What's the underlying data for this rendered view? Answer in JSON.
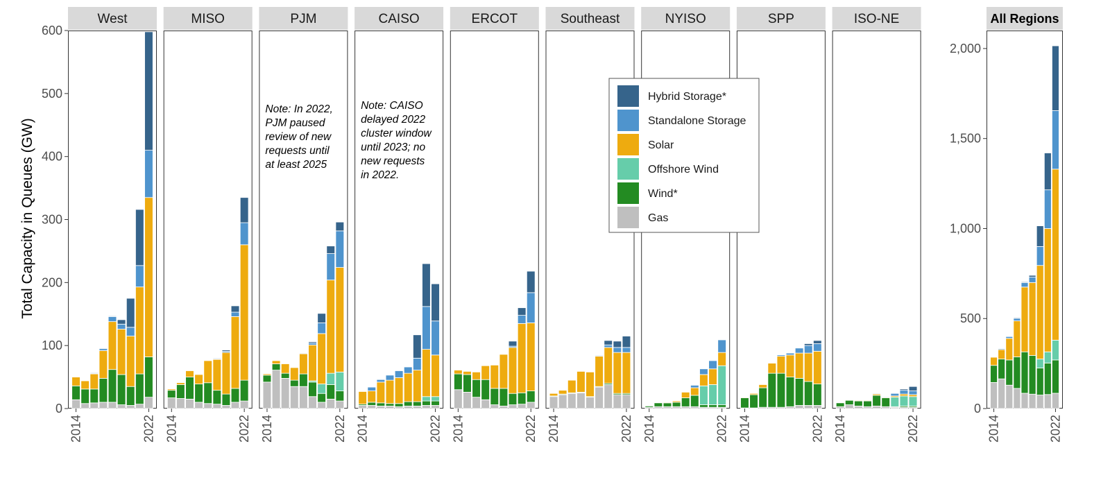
{
  "chart_data": {
    "type": "bar",
    "stacked": true,
    "ylabel": "Total Capacity in Queues (GW)",
    "years": [
      2014,
      2015,
      2016,
      2017,
      2018,
      2019,
      2020,
      2021,
      2022
    ],
    "x_ticks": [
      "2014",
      "2022"
    ],
    "series_order": [
      "Gas",
      "Wind*",
      "Offshore Wind",
      "Solar",
      "Standalone Storage",
      "Hybrid Storage*"
    ],
    "colors": {
      "Gas": "#bfbfbf",
      "Wind*": "#238b22",
      "Offshore Wind": "#66cdaa",
      "Solar": "#eeab0f",
      "Standalone Storage": "#4f94cd",
      "Hybrid Storage*": "#36648b"
    },
    "legend": {
      "position": "top-right",
      "entries": [
        "Hybrid Storage*",
        "Standalone Storage",
        "Solar",
        "Offshore Wind",
        "Wind*",
        "Gas"
      ]
    },
    "regional_ylim": [
      0,
      600
    ],
    "regional_yticks": [
      0,
      100,
      200,
      300,
      400,
      500,
      600
    ],
    "regional_ytick_labels": [
      "0",
      "100",
      "200",
      "300",
      "400",
      "500",
      "600"
    ],
    "panels": [
      {
        "name": "West",
        "series": {
          "Gas": [
            14,
            8,
            9,
            10,
            10,
            6,
            5,
            7,
            18
          ],
          "Wind*": [
            22,
            23,
            22,
            38,
            52,
            48,
            30,
            48,
            64
          ],
          "Offshore Wind": [
            0,
            0,
            0,
            0,
            0,
            0,
            0,
            0,
            0
          ],
          "Solar": [
            14,
            13,
            24,
            44,
            76,
            72,
            80,
            138,
            253
          ],
          "Standalone Storage": [
            0,
            0,
            1,
            3,
            8,
            8,
            14,
            34,
            75
          ],
          "Hybrid Storage*": [
            0,
            0,
            1,
            1,
            1,
            7,
            46,
            89,
            188
          ]
        }
      },
      {
        "name": "MISO",
        "series": {
          "Gas": [
            17,
            16,
            15,
            10,
            8,
            7,
            5,
            10,
            12
          ],
          "Wind*": [
            12,
            22,
            35,
            29,
            33,
            22,
            18,
            22,
            33
          ],
          "Offshore Wind": [
            0,
            0,
            0,
            0,
            0,
            0,
            0,
            0,
            0
          ],
          "Solar": [
            2,
            3,
            10,
            15,
            35,
            49,
            66,
            114,
            215
          ],
          "Standalone Storage": [
            0,
            0,
            0,
            0,
            0,
            1,
            2,
            7,
            35
          ],
          "Hybrid Storage*": [
            0,
            0,
            0,
            0,
            0,
            1,
            2,
            10,
            40
          ]
        }
      },
      {
        "name": "PJM",
        "series": {
          "Gas": [
            42,
            61,
            48,
            35,
            35,
            19,
            10,
            15,
            12
          ],
          "Wind*": [
            11,
            10,
            8,
            10,
            20,
            23,
            14,
            23,
            16
          ],
          "Offshore Wind": [
            0,
            0,
            0,
            0,
            0,
            2,
            15,
            18,
            30
          ],
          "Solar": [
            2,
            5,
            15,
            20,
            32,
            57,
            80,
            148,
            166
          ],
          "Standalone Storage": [
            0,
            0,
            0,
            0,
            1,
            3,
            17,
            42,
            58
          ],
          "Hybrid Storage*": [
            0,
            0,
            0,
            0,
            0,
            2,
            15,
            12,
            14
          ]
        }
      },
      {
        "name": "CAISO",
        "series": {
          "Gas": [
            5,
            5,
            4,
            4,
            3,
            4,
            4,
            5,
            5
          ],
          "Wind*": [
            2,
            5,
            5,
            4,
            5,
            7,
            7,
            7,
            7
          ],
          "Offshore Wind": [
            0,
            0,
            0,
            0,
            0,
            0,
            0,
            7,
            7
          ],
          "Solar": [
            20,
            18,
            33,
            37,
            41,
            45,
            50,
            75,
            66
          ],
          "Standalone Storage": [
            0,
            6,
            4,
            8,
            11,
            10,
            19,
            68,
            54
          ],
          "Hybrid Storage*": [
            0,
            0,
            0,
            0,
            0,
            0,
            37,
            68,
            59
          ]
        }
      },
      {
        "name": "ERCOT",
        "series": {
          "Gas": [
            30,
            26,
            18,
            14,
            6,
            4,
            6,
            7,
            10
          ],
          "Wind*": [
            25,
            28,
            28,
            32,
            26,
            28,
            18,
            18,
            18
          ],
          "Offshore Wind": [
            0,
            0,
            0,
            0,
            0,
            0,
            0,
            0,
            0
          ],
          "Solar": [
            6,
            5,
            12,
            22,
            37,
            54,
            73,
            110,
            108
          ],
          "Standalone Storage": [
            0,
            0,
            0,
            0,
            0,
            0,
            2,
            13,
            48
          ],
          "Hybrid Storage*": [
            0,
            0,
            0,
            0,
            0,
            0,
            8,
            12,
            34
          ]
        }
      },
      {
        "name": "Southeast",
        "series": {
          "Gas": [
            19,
            22,
            24,
            25,
            18,
            34,
            38,
            22,
            22
          ],
          "Wind*": [
            1,
            1,
            1,
            1,
            1,
            1,
            2,
            2,
            2
          ],
          "Offshore Wind": [
            0,
            0,
            0,
            0,
            0,
            0,
            0,
            0,
            0
          ],
          "Solar": [
            4,
            6,
            20,
            33,
            39,
            48,
            57,
            65,
            65
          ],
          "Standalone Storage": [
            0,
            0,
            0,
            0,
            0,
            1,
            4,
            8,
            8
          ],
          "Hybrid Storage*": [
            0,
            0,
            0,
            0,
            0,
            1,
            7,
            10,
            18
          ]
        }
      },
      {
        "name": "NYISO",
        "series": {
          "Gas": [
            2,
            3,
            3,
            3,
            3,
            3,
            2,
            2,
            2
          ],
          "Wind*": [
            2,
            6,
            6,
            7,
            14,
            18,
            4,
            4,
            4
          ],
          "Offshore Wind": [
            0,
            0,
            0,
            0,
            0,
            0,
            30,
            32,
            62
          ],
          "Solar": [
            0,
            0,
            1,
            2,
            9,
            12,
            18,
            25,
            21
          ],
          "Standalone Storage": [
            0,
            0,
            0,
            0,
            0,
            4,
            9,
            13,
            20
          ],
          "Hybrid Storage*": [
            0,
            0,
            0,
            0,
            0,
            0,
            0,
            0,
            0
          ]
        }
      },
      {
        "name": "SPP",
        "series": {
          "Gas": [
            1,
            1,
            2,
            2,
            2,
            3,
            5,
            5,
            5
          ],
          "Wind*": [
            16,
            21,
            31,
            54,
            54,
            47,
            43,
            38,
            34
          ],
          "Offshore Wind": [
            0,
            0,
            0,
            0,
            0,
            0,
            0,
            0,
            0
          ],
          "Solar": [
            1,
            2,
            5,
            16,
            27,
            35,
            40,
            45,
            52
          ],
          "Standalone Storage": [
            0,
            0,
            0,
            0,
            2,
            3,
            8,
            12,
            12
          ],
          "Hybrid Storage*": [
            0,
            0,
            0,
            0,
            0,
            0,
            0,
            3,
            5
          ]
        }
      },
      {
        "name": "ISO-NE",
        "series": {
          "Gas": [
            3,
            6,
            4,
            3,
            4,
            3,
            2,
            2,
            2
          ],
          "Wind*": [
            6,
            7,
            8,
            9,
            17,
            14,
            1,
            2,
            2
          ],
          "Offshore Wind": [
            0,
            0,
            0,
            0,
            0,
            0,
            15,
            16,
            15
          ],
          "Solar": [
            0,
            0,
            1,
            1,
            2,
            1,
            2,
            3,
            3
          ],
          "Standalone Storage": [
            0,
            0,
            0,
            0,
            1,
            1,
            4,
            6,
            6
          ],
          "Hybrid Storage*": [
            0,
            0,
            0,
            0,
            0,
            0,
            0,
            2,
            7
          ]
        }
      }
    ],
    "total_panel": {
      "name": "All Regions",
      "ylim": [
        0,
        2100
      ],
      "yticks": [
        0,
        500,
        1000,
        1500,
        2000
      ],
      "ytick_labels": [
        "0",
        "500",
        "1,000",
        "1,500",
        "2,000"
      ],
      "series": {
        "Gas": [
          145,
          165,
          130,
          112,
          85,
          80,
          75,
          78,
          85
        ],
        "Wind*": [
          95,
          110,
          140,
          175,
          230,
          215,
          150,
          175,
          185
        ],
        "Offshore Wind": [
          0,
          0,
          0,
          0,
          0,
          0,
          50,
          62,
          110
        ],
        "Solar": [
          45,
          52,
          120,
          200,
          360,
          405,
          520,
          685,
          950
        ],
        "Standalone Storage": [
          0,
          5,
          10,
          14,
          25,
          30,
          105,
          215,
          325
        ],
        "Hybrid Storage*": [
          0,
          0,
          2,
          4,
          4,
          10,
          115,
          205,
          360
        ]
      }
    },
    "annotations": [
      {
        "panel": "PJM",
        "lines": [
          "Note: In 2022,",
          "PJM paused",
          "review of new",
          "requests until",
          "at least 2025"
        ]
      },
      {
        "panel": "CAISO",
        "lines": [
          "Note: CAISO",
          "delayed 2022",
          "cluster window",
          "until 2023; no",
          "new requests",
          "in 2022."
        ]
      }
    ]
  }
}
